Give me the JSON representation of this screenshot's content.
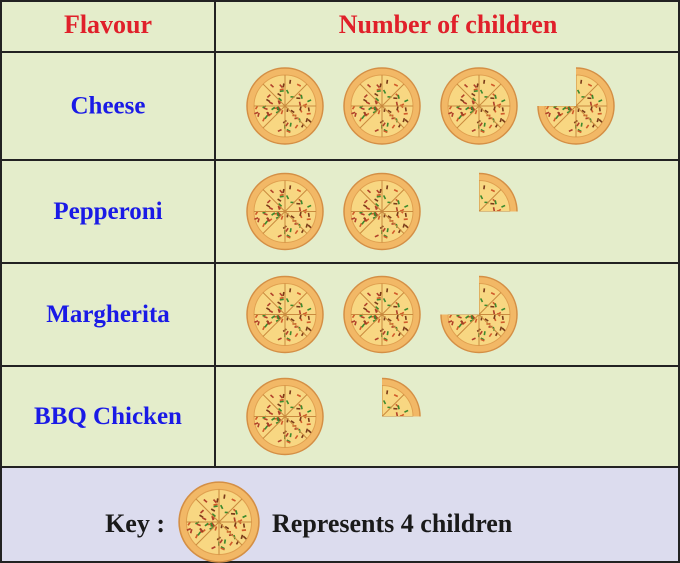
{
  "chart_data": {
    "type": "pictograph",
    "columns": [
      "Flavour",
      "Number of children"
    ],
    "categories": [
      "Cheese",
      "Pepperoni",
      "Margherita",
      "BBQ Chicken"
    ],
    "values": [
      15,
      9,
      11,
      5
    ],
    "key": {
      "label": "Key :",
      "value": 4,
      "text": "Represents 4 children"
    }
  }
}
